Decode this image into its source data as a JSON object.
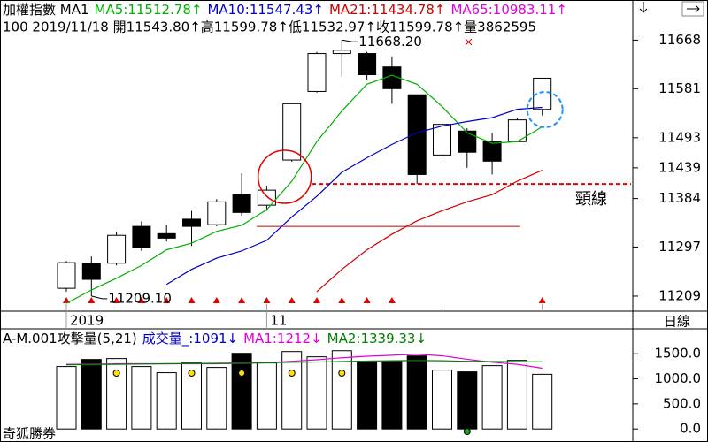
{
  "chart_data": [
    {
      "type": "candlestick",
      "title": "加權指數 MA1",
      "subtitle": "100 2019/11/18 開11543.80↑高11599.78↑低11532.97↑收11599.78↑量3862595",
      "categories": [
        "2019",
        null,
        null,
        null,
        null,
        null,
        null,
        null,
        "11",
        null,
        null,
        null,
        null,
        null,
        null,
        null,
        null,
        null,
        null,
        null
      ],
      "open": [
        11223,
        11268,
        11268,
        11334,
        11321,
        11347,
        11337,
        11391,
        11372,
        11453,
        11576,
        11644,
        11644,
        11620,
        11570,
        11462,
        11505,
        11486,
        11486,
        11543.8
      ],
      "high": [
        11272,
        11280,
        11324,
        11343,
        11336,
        11362,
        11383,
        11429,
        11407,
        11554,
        11647,
        11668.2,
        11647,
        11639,
        11570,
        11522,
        11510,
        11502,
        11529,
        11599.78
      ],
      "low": [
        11217,
        11209.1,
        11264,
        11290,
        11307,
        11299,
        11334,
        11353,
        11362,
        11450,
        11574,
        11603,
        11597,
        11554,
        11410,
        11459,
        11439,
        11427,
        11486,
        11532.97
      ],
      "close": [
        11269,
        11239,
        11318,
        11296,
        11313,
        11334,
        11378,
        11359,
        11399,
        11554,
        11644,
        11650,
        11606,
        11581,
        11427,
        11517,
        11467,
        11451,
        11525,
        11599.78
      ],
      "up_color": "#ffffff",
      "down_color": "#000000",
      "series": [
        {
          "name": "MA5:11512.78↑",
          "color": "#00b000",
          "values": [
            11196,
            11220,
            11241,
            11264,
            11292,
            11304,
            11325,
            11336,
            11364,
            11415,
            11486,
            11541,
            11589,
            11605,
            11589,
            11549,
            11502,
            11483,
            11486,
            11512.78
          ]
        },
        {
          "name": "MA10:11547.43↑",
          "color": "#0000c0",
          "values": [
            null,
            null,
            null,
            null,
            11230,
            11257,
            11277,
            11290,
            11309,
            11351,
            11388,
            11431,
            11457,
            11481,
            11502,
            11514,
            11522,
            11529,
            11544,
            11547.43
          ]
        },
        {
          "name": "MA21:11434.78↑",
          "color": "#d00000",
          "values": [
            null,
            null,
            null,
            null,
            null,
            null,
            null,
            null,
            null,
            null,
            11217,
            11257,
            11292,
            11320,
            11344,
            11362,
            11378,
            11391,
            11415,
            11434.78
          ]
        },
        {
          "name": "MA65:10983.11↑",
          "color": "#e000e0",
          "values": [
            null,
            null,
            null,
            null,
            null,
            null,
            null,
            null,
            null,
            null,
            null,
            null,
            null,
            null,
            null,
            null,
            null,
            null,
            null,
            null
          ]
        }
      ],
      "ylim": [
        11182,
        11740
      ],
      "yticks": [
        11668,
        11581,
        11493,
        11439,
        11384,
        11297,
        11209
      ],
      "annotations": [
        {
          "text": "11668.20",
          "value": 11668.2
        },
        {
          "text": "11209.10",
          "value": 11209.1
        }
      ],
      "neckline": {
        "text": "頸線",
        "value": 11410,
        "color": "#e00000"
      },
      "support_line": {
        "value": 11334,
        "color": "#c00000"
      },
      "period_label": "日線"
    },
    {
      "type": "bar",
      "title": "A-M.001攻擊量(5,21)",
      "series": [
        {
          "name": "成交量_:1091↓",
          "color": "#0000c0",
          "values": [
            1246,
            1386,
            1404,
            1246,
            1123,
            1316,
            1228,
            1509,
            1316,
            1544,
            1439,
            1561,
            1351,
            1351,
            1456,
            1175,
            1140,
            1263,
            1368,
            1091
          ]
        },
        {
          "name": "MA1:1212↓",
          "color": "#e000e0",
          "values": [
            1290,
            1290,
            1300,
            1300,
            1300,
            1300,
            1300,
            1310,
            1320,
            1350,
            1380,
            1420,
            1450,
            1470,
            1490,
            1460,
            1390,
            1330,
            1290,
            1212
          ]
        },
        {
          "name": "MA2:1339.33↓",
          "color": "#008000",
          "values": [
            1280,
            1285,
            1290,
            1295,
            1300,
            1305,
            1310,
            1315,
            1320,
            1330,
            1335,
            1345,
            1355,
            1360,
            1365,
            1360,
            1350,
            1345,
            1340,
            1339.33
          ]
        }
      ],
      "bar_colors": [
        "#ffffff",
        "#000000",
        "#ffffff",
        "#ffffff",
        "#ffffff",
        "#ffffff",
        "#ffffff",
        "#000000",
        "#ffffff",
        "#ffffff",
        "#ffffff",
        "#ffffff",
        "#000000",
        "#000000",
        "#000000",
        "#ffffff",
        "#000000",
        "#ffffff",
        "#ffffff",
        "#ffffff"
      ],
      "ylim": [
        -120,
        1680
      ],
      "yticks": [
        {
          "value": 1500,
          "label": "1500.0"
        },
        {
          "value": 1000,
          "label": "1000.0"
        },
        {
          "value": 500,
          "label": "500.0"
        },
        {
          "value": 0,
          "label": "0.0"
        }
      ],
      "footer": "奇狐勝券"
    }
  ]
}
